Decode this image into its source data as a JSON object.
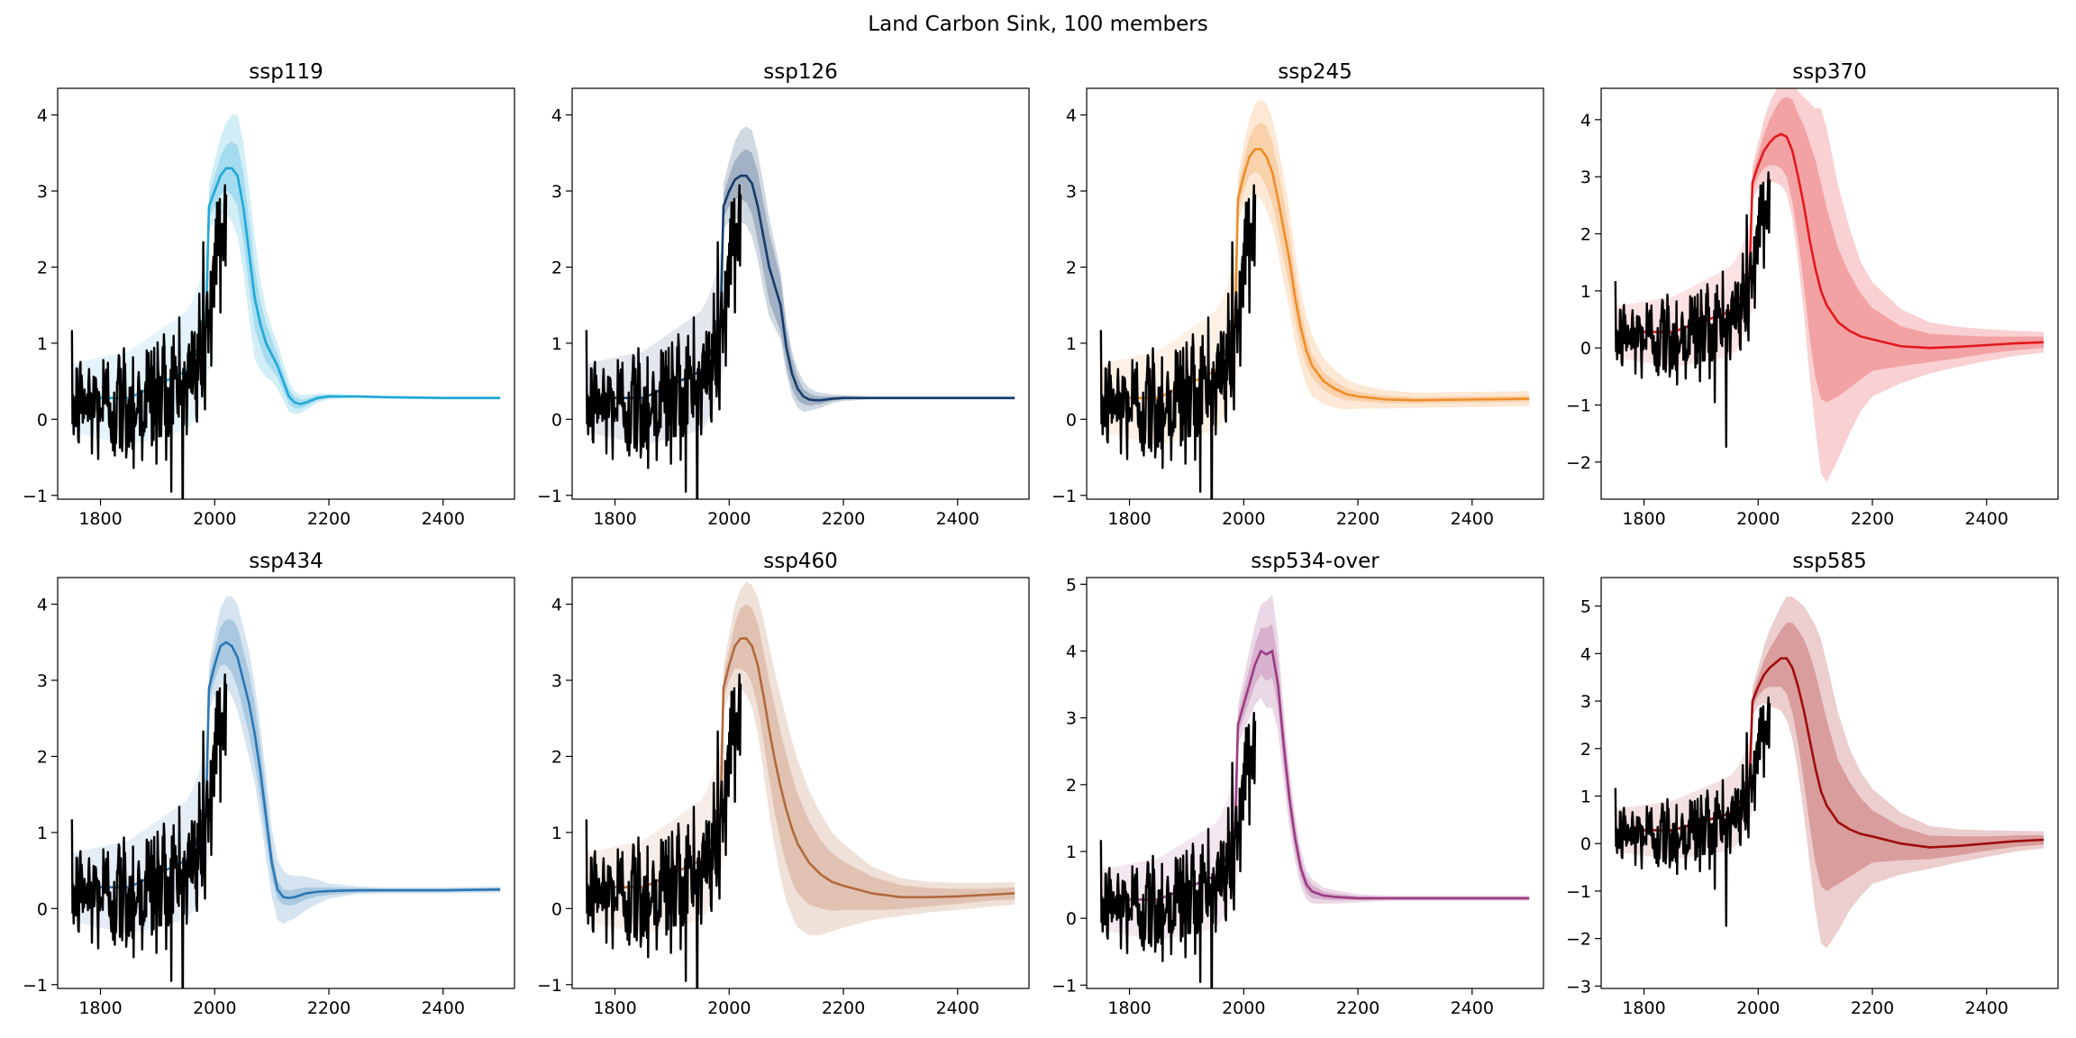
{
  "figure": {
    "title": "Land Carbon Sink, 100 members"
  },
  "chart_data": [
    {
      "type": "line",
      "title": "ssp119",
      "color": "#1fa8d7",
      "xlim": [
        1725,
        2525
      ],
      "ylim": [
        -1.05,
        4.35
      ],
      "xticks": [
        1800,
        2000,
        2200,
        2400
      ],
      "yticks": [
        -1,
        0,
        1,
        2,
        3,
        4
      ],
      "projection_mean": {
        "x": [
          1990,
          2000,
          2010,
          2020,
          2030,
          2040,
          2050,
          2060,
          2070,
          2080,
          2090,
          2100,
          2110,
          2120,
          2130,
          2140,
          2150,
          2160,
          2180,
          2200,
          2250,
          2300,
          2400,
          2500
        ],
        "y": [
          2.8,
          3.0,
          3.2,
          3.3,
          3.3,
          3.2,
          2.8,
          2.2,
          1.6,
          1.25,
          1.0,
          0.85,
          0.7,
          0.5,
          0.3,
          0.22,
          0.2,
          0.22,
          0.28,
          0.3,
          0.3,
          0.29,
          0.28,
          0.28
        ]
      },
      "inner_band_halfwidth": [
        0.15,
        0.2,
        0.25,
        0.3,
        0.35,
        0.4,
        0.45,
        0.45,
        0.4,
        0.3,
        0.25,
        0.2,
        0.15,
        0.12,
        0.1,
        0.08,
        0.06,
        0.05,
        0.03,
        0.02,
        0.01,
        0.01,
        0.01,
        0.01
      ],
      "outer_band_halfwidth": [
        0.3,
        0.4,
        0.5,
        0.6,
        0.7,
        0.8,
        0.85,
        0.85,
        0.8,
        0.6,
        0.45,
        0.35,
        0.3,
        0.25,
        0.2,
        0.15,
        0.12,
        0.1,
        0.06,
        0.04,
        0.02,
        0.02,
        0.02,
        0.02
      ]
    },
    {
      "type": "line",
      "title": "ssp126",
      "color": "#163c6b",
      "xlim": [
        1725,
        2525
      ],
      "ylim": [
        -1.05,
        4.35
      ],
      "xticks": [
        1800,
        2000,
        2200,
        2400
      ],
      "yticks": [
        -1,
        0,
        1,
        2,
        3,
        4
      ],
      "projection_mean": {
        "x": [
          1990,
          2000,
          2010,
          2020,
          2030,
          2040,
          2050,
          2060,
          2070,
          2080,
          2090,
          2100,
          2110,
          2120,
          2130,
          2140,
          2150,
          2160,
          2180,
          2200,
          2250,
          2300,
          2400,
          2500
        ],
        "y": [
          2.8,
          3.0,
          3.15,
          3.2,
          3.2,
          3.1,
          2.8,
          2.4,
          2.0,
          1.75,
          1.5,
          0.95,
          0.6,
          0.4,
          0.3,
          0.26,
          0.25,
          0.25,
          0.27,
          0.28,
          0.28,
          0.28,
          0.28,
          0.28
        ]
      },
      "inner_band_halfwidth": [
        0.15,
        0.2,
        0.25,
        0.3,
        0.35,
        0.4,
        0.45,
        0.45,
        0.45,
        0.4,
        0.35,
        0.25,
        0.2,
        0.15,
        0.1,
        0.08,
        0.06,
        0.05,
        0.03,
        0.02,
        0.01,
        0.01,
        0.01,
        0.01
      ],
      "outer_band_halfwidth": [
        0.3,
        0.4,
        0.5,
        0.6,
        0.65,
        0.7,
        0.7,
        0.7,
        0.65,
        0.55,
        0.45,
        0.35,
        0.3,
        0.25,
        0.2,
        0.15,
        0.12,
        0.1,
        0.06,
        0.04,
        0.02,
        0.02,
        0.02,
        0.02
      ]
    },
    {
      "type": "line",
      "title": "ssp245",
      "color": "#ee8d2a",
      "xlim": [
        1725,
        2525
      ],
      "ylim": [
        -1.05,
        4.35
      ],
      "xticks": [
        1800,
        2000,
        2200,
        2400
      ],
      "yticks": [
        -1,
        0,
        1,
        2,
        3,
        4
      ],
      "projection_mean": {
        "x": [
          1990,
          2000,
          2010,
          2020,
          2030,
          2040,
          2050,
          2060,
          2070,
          2080,
          2090,
          2100,
          2110,
          2120,
          2140,
          2160,
          2180,
          2200,
          2250,
          2300,
          2400,
          2500
        ],
        "y": [
          2.9,
          3.2,
          3.45,
          3.55,
          3.55,
          3.45,
          3.25,
          2.9,
          2.5,
          2.1,
          1.6,
          1.2,
          0.9,
          0.7,
          0.5,
          0.4,
          0.33,
          0.3,
          0.26,
          0.25,
          0.26,
          0.27
        ]
      },
      "inner_band_halfwidth": [
        0.15,
        0.2,
        0.25,
        0.3,
        0.35,
        0.4,
        0.4,
        0.4,
        0.4,
        0.35,
        0.3,
        0.25,
        0.2,
        0.15,
        0.12,
        0.1,
        0.08,
        0.06,
        0.05,
        0.04,
        0.04,
        0.04
      ],
      "outer_band_halfwidth": [
        0.3,
        0.4,
        0.5,
        0.6,
        0.65,
        0.7,
        0.7,
        0.7,
        0.7,
        0.65,
        0.6,
        0.5,
        0.45,
        0.4,
        0.3,
        0.25,
        0.2,
        0.16,
        0.12,
        0.1,
        0.1,
        0.1
      ]
    },
    {
      "type": "line",
      "title": "ssp370",
      "color": "#e3181c",
      "xlim": [
        1725,
        2525
      ],
      "ylim": [
        -2.65,
        4.55
      ],
      "xticks": [
        1800,
        2000,
        2200,
        2400
      ],
      "yticks": [
        -2,
        -1,
        0,
        1,
        2,
        3,
        4
      ],
      "projection_mean": {
        "x": [
          1990,
          2000,
          2010,
          2020,
          2030,
          2040,
          2050,
          2060,
          2070,
          2080,
          2090,
          2100,
          2110,
          2120,
          2140,
          2160,
          2180,
          2200,
          2250,
          2300,
          2350,
          2400,
          2450,
          2500
        ],
        "y": [
          2.9,
          3.2,
          3.45,
          3.6,
          3.7,
          3.75,
          3.7,
          3.45,
          3.0,
          2.5,
          1.9,
          1.4,
          1.0,
          0.75,
          0.45,
          0.3,
          0.2,
          0.15,
          0.03,
          0.0,
          0.02,
          0.05,
          0.08,
          0.1
        ]
      },
      "inner_band_halfwidth": [
        0.15,
        0.2,
        0.3,
        0.4,
        0.5,
        0.6,
        0.7,
        0.9,
        1.1,
        1.4,
        1.7,
        1.9,
        1.9,
        1.7,
        1.3,
        1.0,
        0.75,
        0.55,
        0.35,
        0.25,
        0.2,
        0.15,
        0.12,
        0.1
      ],
      "outer_band_halfwidth": [
        0.3,
        0.4,
        0.55,
        0.7,
        0.8,
        0.9,
        1.0,
        1.2,
        1.5,
        1.9,
        2.4,
        2.8,
        3.2,
        3.1,
        2.4,
        1.8,
        1.3,
        1.0,
        0.65,
        0.45,
        0.35,
        0.28,
        0.22,
        0.18
      ]
    },
    {
      "type": "line",
      "title": "ssp434",
      "color": "#2c77b4",
      "xlim": [
        1725,
        2525
      ],
      "ylim": [
        -1.05,
        4.35
      ],
      "xticks": [
        1800,
        2000,
        2200,
        2400
      ],
      "yticks": [
        -1,
        0,
        1,
        2,
        3,
        4
      ],
      "projection_mean": {
        "x": [
          1990,
          2000,
          2010,
          2020,
          2030,
          2040,
          2050,
          2060,
          2070,
          2080,
          2090,
          2100,
          2110,
          2120,
          2130,
          2140,
          2160,
          2180,
          2200,
          2250,
          2300,
          2400,
          2500
        ],
        "y": [
          2.9,
          3.2,
          3.45,
          3.5,
          3.45,
          3.3,
          3.0,
          2.7,
          2.3,
          1.8,
          1.2,
          0.6,
          0.25,
          0.15,
          0.14,
          0.15,
          0.2,
          0.22,
          0.23,
          0.24,
          0.24,
          0.24,
          0.25
        ]
      },
      "inner_band_halfwidth": [
        0.15,
        0.2,
        0.25,
        0.3,
        0.35,
        0.4,
        0.4,
        0.4,
        0.4,
        0.35,
        0.3,
        0.2,
        0.12,
        0.1,
        0.1,
        0.1,
        0.08,
        0.06,
        0.05,
        0.03,
        0.02,
        0.02,
        0.02
      ],
      "outer_band_halfwidth": [
        0.3,
        0.4,
        0.5,
        0.6,
        0.65,
        0.7,
        0.7,
        0.7,
        0.65,
        0.6,
        0.55,
        0.45,
        0.4,
        0.35,
        0.3,
        0.28,
        0.22,
        0.16,
        0.1,
        0.05,
        0.04,
        0.04,
        0.04
      ]
    },
    {
      "type": "line",
      "title": "ssp460",
      "color": "#b2693e",
      "xlim": [
        1725,
        2525
      ],
      "ylim": [
        -1.05,
        4.35
      ],
      "xticks": [
        1800,
        2000,
        2200,
        2400
      ],
      "yticks": [
        -1,
        0,
        1,
        2,
        3,
        4
      ],
      "projection_mean": {
        "x": [
          1990,
          2000,
          2010,
          2020,
          2030,
          2040,
          2050,
          2060,
          2070,
          2080,
          2090,
          2100,
          2110,
          2120,
          2140,
          2160,
          2180,
          2200,
          2250,
          2300,
          2350,
          2400,
          2450,
          2500
        ],
        "y": [
          2.9,
          3.2,
          3.45,
          3.55,
          3.55,
          3.45,
          3.2,
          2.8,
          2.35,
          1.95,
          1.6,
          1.3,
          1.05,
          0.85,
          0.6,
          0.45,
          0.35,
          0.3,
          0.2,
          0.15,
          0.15,
          0.16,
          0.18,
          0.2
        ]
      },
      "inner_band_halfwidth": [
        0.15,
        0.2,
        0.3,
        0.4,
        0.45,
        0.5,
        0.55,
        0.6,
        0.65,
        0.7,
        0.72,
        0.72,
        0.7,
        0.65,
        0.55,
        0.45,
        0.38,
        0.32,
        0.22,
        0.16,
        0.12,
        0.1,
        0.08,
        0.08
      ],
      "outer_band_halfwidth": [
        0.3,
        0.4,
        0.55,
        0.65,
        0.75,
        0.8,
        0.9,
        1.0,
        1.1,
        1.15,
        1.2,
        1.2,
        1.15,
        1.1,
        0.95,
        0.8,
        0.65,
        0.55,
        0.35,
        0.25,
        0.2,
        0.18,
        0.16,
        0.15
      ]
    },
    {
      "type": "line",
      "title": "ssp534-over",
      "color": "#9c3b84",
      "xlim": [
        1725,
        2525
      ],
      "ylim": [
        -1.05,
        5.1
      ],
      "xticks": [
        1800,
        2000,
        2200,
        2400
      ],
      "yticks": [
        -1,
        0,
        1,
        2,
        3,
        4,
        5
      ],
      "projection_mean": {
        "x": [
          1990,
          2000,
          2010,
          2020,
          2030,
          2040,
          2050,
          2060,
          2070,
          2080,
          2090,
          2100,
          2110,
          2120,
          2140,
          2160,
          2180,
          2200,
          2250,
          2300,
          2400,
          2500
        ],
        "y": [
          2.9,
          3.2,
          3.5,
          3.8,
          4.0,
          3.95,
          4.0,
          3.5,
          2.6,
          1.8,
          1.2,
          0.75,
          0.5,
          0.4,
          0.34,
          0.32,
          0.31,
          0.3,
          0.3,
          0.3,
          0.3,
          0.3
        ]
      },
      "inner_band_halfwidth": [
        0.15,
        0.2,
        0.25,
        0.3,
        0.35,
        0.4,
        0.4,
        0.35,
        0.3,
        0.25,
        0.2,
        0.15,
        0.12,
        0.1,
        0.06,
        0.05,
        0.04,
        0.03,
        0.02,
        0.02,
        0.02,
        0.02
      ],
      "outer_band_halfwidth": [
        0.3,
        0.4,
        0.5,
        0.6,
        0.7,
        0.8,
        0.85,
        0.7,
        0.55,
        0.45,
        0.35,
        0.28,
        0.22,
        0.18,
        0.12,
        0.1,
        0.08,
        0.06,
        0.04,
        0.04,
        0.04,
        0.04
      ]
    },
    {
      "type": "line",
      "title": "ssp585",
      "color": "#9e0c0c",
      "xlim": [
        1725,
        2525
      ],
      "ylim": [
        -3.05,
        5.6
      ],
      "xticks": [
        1800,
        2000,
        2200,
        2400
      ],
      "yticks": [
        -3,
        -2,
        -1,
        0,
        1,
        2,
        3,
        4,
        5
      ],
      "projection_mean": {
        "x": [
          1990,
          2000,
          2010,
          2020,
          2030,
          2040,
          2050,
          2060,
          2070,
          2080,
          2090,
          2100,
          2110,
          2120,
          2140,
          2160,
          2180,
          2200,
          2250,
          2300,
          2350,
          2400,
          2450,
          2500
        ],
        "y": [
          3.0,
          3.3,
          3.55,
          3.7,
          3.8,
          3.9,
          3.9,
          3.7,
          3.3,
          2.8,
          2.2,
          1.6,
          1.1,
          0.8,
          0.45,
          0.3,
          0.2,
          0.15,
          0.0,
          -0.08,
          -0.05,
          0.0,
          0.05,
          0.08
        ]
      },
      "inner_band_halfwidth": [
        0.15,
        0.2,
        0.3,
        0.4,
        0.5,
        0.6,
        0.75,
        0.95,
        1.2,
        1.5,
        1.8,
        2.0,
        2.0,
        1.8,
        1.3,
        1.0,
        0.75,
        0.55,
        0.35,
        0.25,
        0.2,
        0.15,
        0.12,
        0.1
      ],
      "outer_band_halfwidth": [
        0.3,
        0.4,
        0.6,
        0.8,
        0.95,
        1.1,
        1.3,
        1.5,
        1.8,
        2.2,
        2.6,
        3.0,
        3.2,
        3.0,
        2.3,
        1.7,
        1.3,
        1.0,
        0.65,
        0.45,
        0.35,
        0.28,
        0.22,
        0.18
      ]
    }
  ]
}
